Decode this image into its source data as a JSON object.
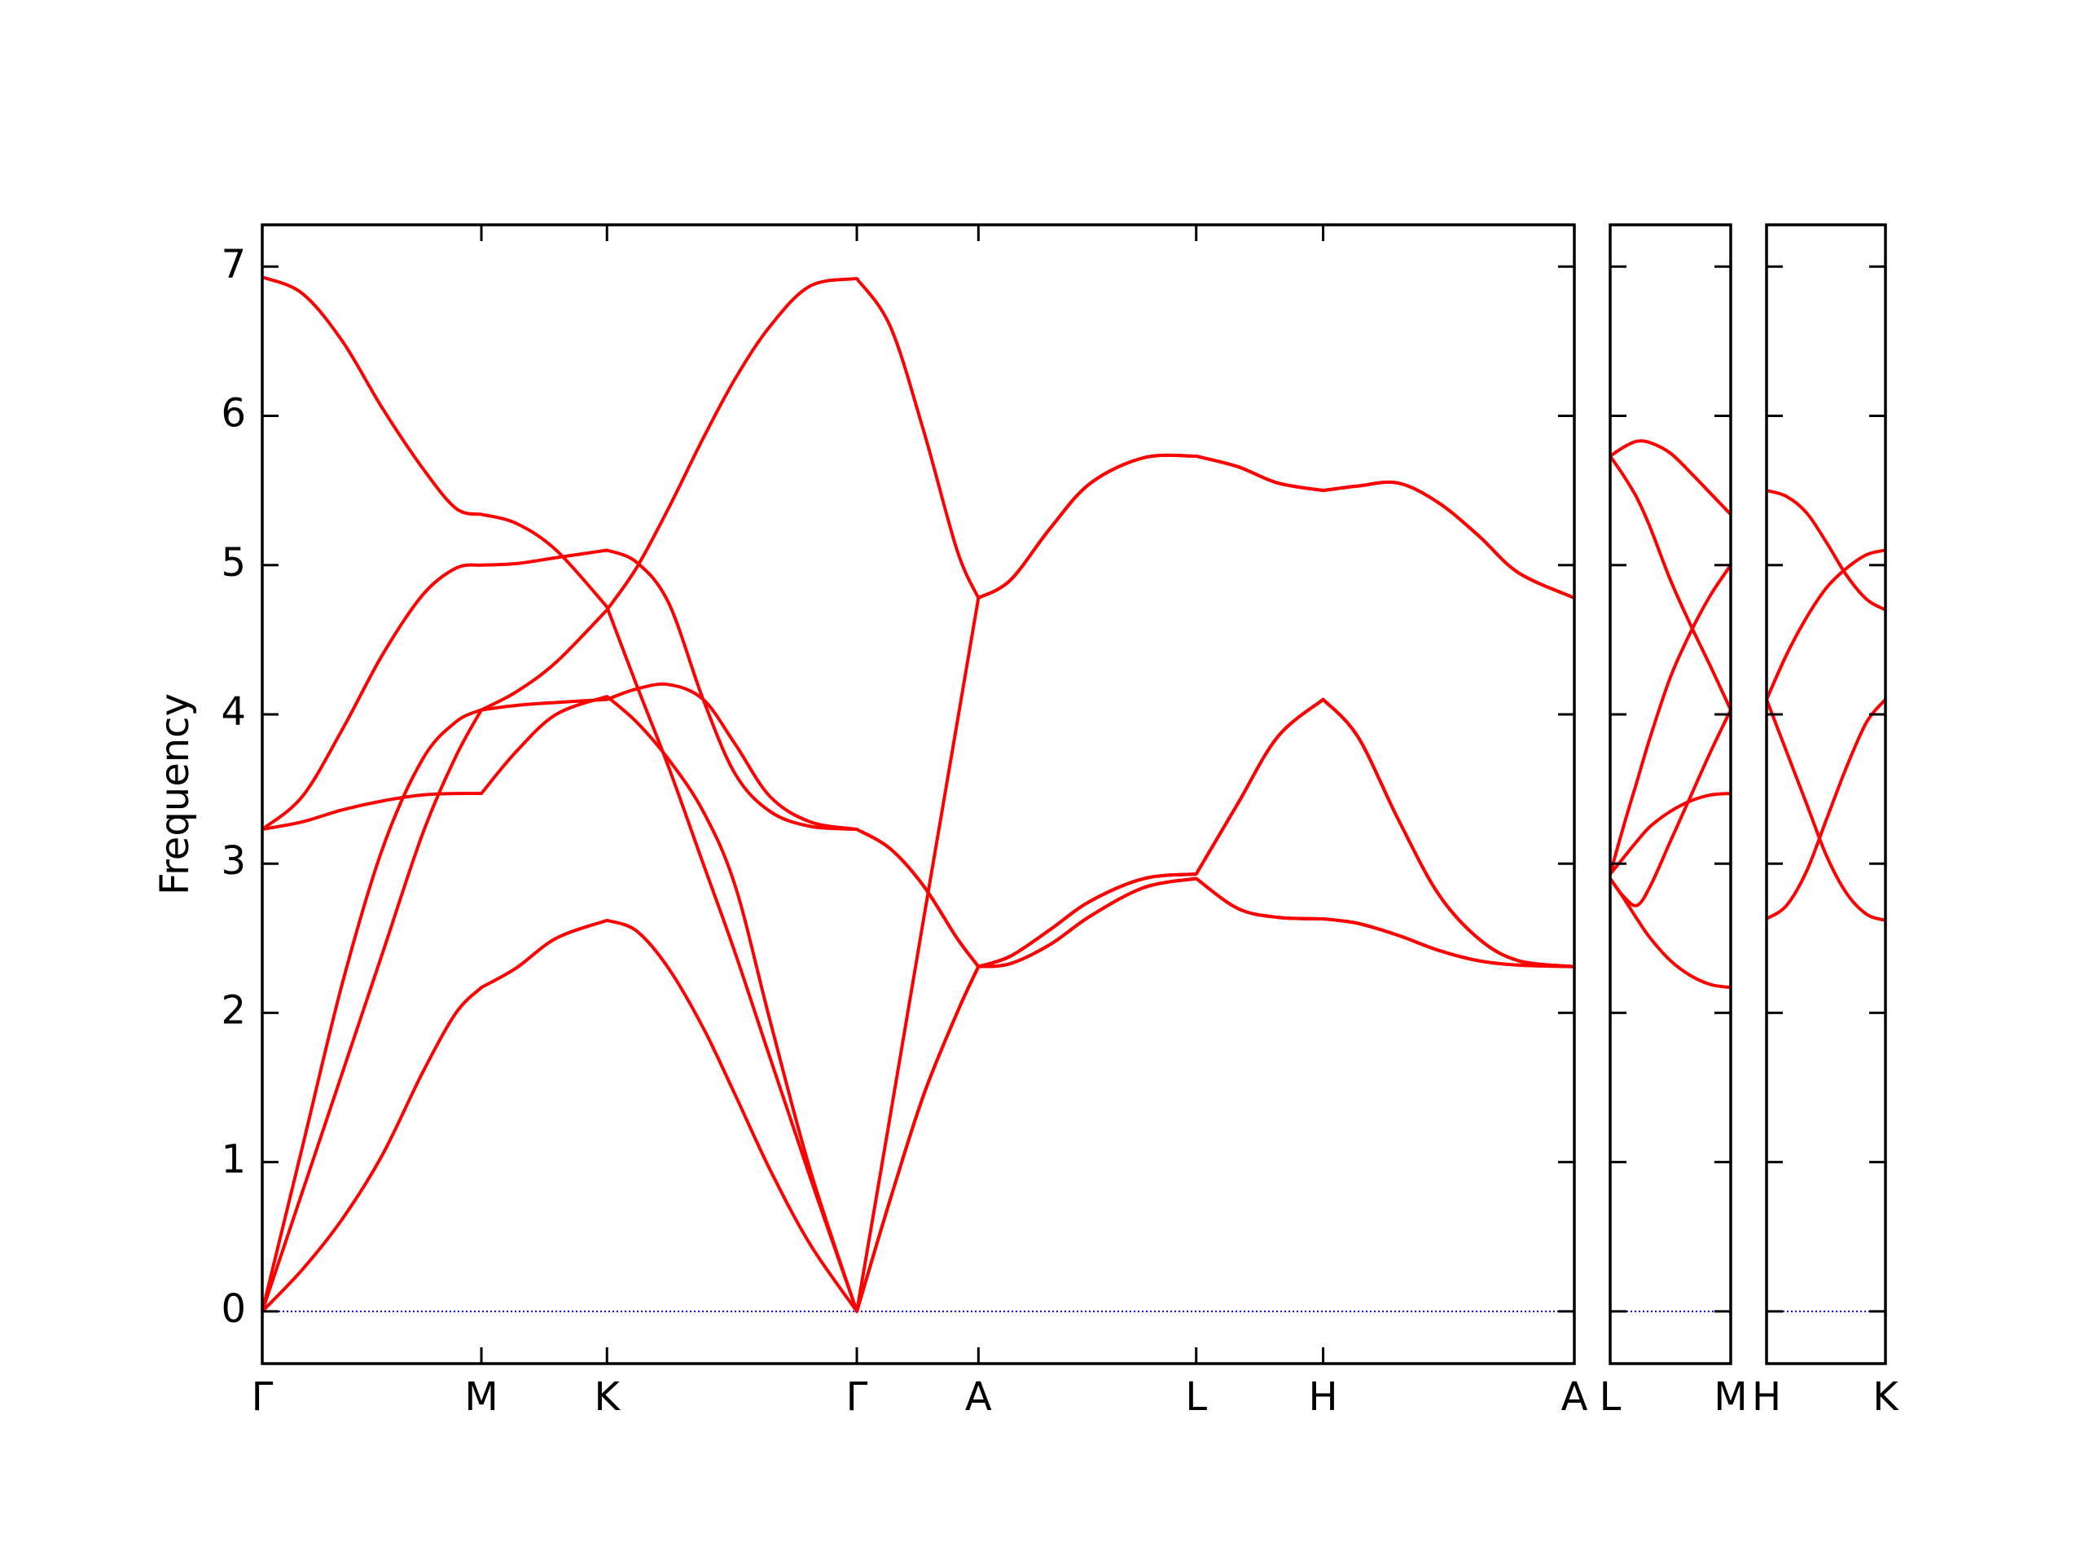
{
  "chart_data": [
    {
      "type": "line",
      "ylabel": "Frequency",
      "xlim": [
        0,
        9.82
      ],
      "ylim": [
        -0.35,
        7.28
      ],
      "yticks": [
        0,
        1,
        2,
        3,
        4,
        5,
        6,
        7
      ],
      "ytick_labels": true,
      "xticks": [
        {
          "value": 0,
          "label": "Γ"
        },
        {
          "value": 1.64,
          "label": "M"
        },
        {
          "value": 2.58,
          "label": "K"
        },
        {
          "value": 4.45,
          "label": "Γ"
        },
        {
          "value": 5.36,
          "label": "A"
        },
        {
          "value": 6.99,
          "label": "L"
        },
        {
          "value": 7.94,
          "label": "H"
        },
        {
          "value": 9.82,
          "label": "A"
        }
      ],
      "hline": 0,
      "hline_color": "#0000ff",
      "x": [
        0,
        0.3,
        0.6,
        0.9,
        1.2,
        1.45,
        1.64,
        1.9,
        2.2,
        2.58,
        2.8,
        3.04,
        3.3,
        3.54,
        3.8,
        4.1,
        4.45,
        4.7,
        4.95,
        5.2,
        5.36,
        5.6,
        5.9,
        6.2,
        6.6,
        6.99,
        7.3,
        7.6,
        7.94,
        8.2,
        8.5,
        8.8,
        9.1,
        9.4,
        9.82
      ],
      "series": [
        {
          "color": "#ff0000",
          "values": [
            0,
            0.28,
            0.62,
            1.05,
            1.6,
            2.0,
            2.17,
            2.3,
            2.5,
            2.62,
            2.55,
            2.3,
            1.9,
            1.45,
            0.95,
            0.45,
            0,
            0.75,
            1.45,
            2.0,
            2.31,
            2.33,
            2.46,
            2.65,
            2.84,
            2.9,
            2.7,
            2.64,
            2.63,
            2.6,
            2.52,
            2.42,
            2.35,
            2.32,
            2.31
          ]
        },
        {
          "color": "#ff0000",
          "values": [
            0,
            0.8,
            1.6,
            2.4,
            3.2,
            3.72,
            4.03,
            4.06,
            4.08,
            4.1,
            4.17,
            4.2,
            4.1,
            3.8,
            3.45,
            3.28,
            3.23,
            3.1,
            2.85,
            2.5,
            2.31,
            2.38,
            2.56,
            2.75,
            2.9,
            2.93,
            3.4,
            3.85,
            4.1,
            3.85,
            3.3,
            2.8,
            2.5,
            2.35,
            2.31
          ]
        },
        {
          "color": "#ff0000",
          "values": [
            0,
            1.1,
            2.2,
            3.1,
            3.7,
            3.95,
            4.03,
            4.15,
            4.35,
            4.7,
            4.98,
            5.38,
            5.85,
            6.25,
            6.6,
            6.87,
            6.92,
            6.6,
            5.9,
            5.1,
            4.78,
            4.9,
            5.25,
            5.55,
            5.72,
            5.73,
            5.66,
            5.55,
            5.5,
            5.53,
            5.55,
            5.42,
            5.2,
            4.95,
            4.78
          ]
        },
        {
          "color": "#ff0000",
          "values": [
            3.23,
            3.28,
            3.36,
            3.42,
            3.46,
            3.47,
            3.47,
            3.75,
            4.0,
            4.12,
            3.95,
            3.7,
            3.35,
            2.85,
            1.95,
            0.95,
            0,
            0.75,
            1.45,
            2.0,
            2.31,
            2.33,
            2.46,
            2.65,
            2.84,
            2.9,
            2.7,
            2.64,
            2.63,
            2.6,
            2.52,
            2.42,
            2.35,
            2.32,
            2.31
          ]
        },
        {
          "color": "#ff0000",
          "values": [
            3.23,
            3.45,
            3.9,
            4.4,
            4.8,
            4.98,
            5.0,
            5.01,
            5.05,
            5.1,
            5.02,
            4.75,
            4.1,
            3.6,
            3.35,
            3.25,
            3.23,
            3.1,
            2.85,
            2.5,
            2.31,
            2.38,
            2.56,
            2.75,
            2.9,
            2.93,
            3.4,
            3.85,
            4.1,
            3.85,
            3.3,
            2.8,
            2.5,
            2.35,
            2.31
          ]
        },
        {
          "color": "#ff0000",
          "values": [
            6.93,
            6.82,
            6.5,
            6.05,
            5.65,
            5.38,
            5.34,
            5.28,
            5.1,
            4.72,
            4.2,
            3.65,
            3.0,
            2.4,
            1.7,
            0.9,
            0,
            1.31,
            2.63,
            3.94,
            4.78,
            4.9,
            5.25,
            5.55,
            5.72,
            5.73,
            5.66,
            5.55,
            5.5,
            5.53,
            5.55,
            5.42,
            5.2,
            4.95,
            4.78
          ]
        }
      ]
    },
    {
      "type": "line",
      "xlim": [
        0,
        0.9
      ],
      "ylim": [
        -0.35,
        7.28
      ],
      "yticks": [
        0,
        1,
        2,
        3,
        4,
        5,
        6,
        7
      ],
      "ytick_labels": false,
      "xticks": [
        {
          "value": 0,
          "label": "L"
        },
        {
          "value": 0.9,
          "label": "M"
        }
      ],
      "hline": 0,
      "hline_color": "#0000ff",
      "x": [
        0,
        0.1,
        0.2,
        0.3,
        0.45,
        0.6,
        0.75,
        0.9
      ],
      "series": [
        {
          "color": "#ff0000",
          "values": [
            5.73,
            5.79,
            5.83,
            5.82,
            5.75,
            5.62,
            5.48,
            5.34
          ]
        },
        {
          "color": "#ff0000",
          "values": [
            5.73,
            5.6,
            5.45,
            5.25,
            4.9,
            4.6,
            4.32,
            4.03
          ]
        },
        {
          "color": "#ff0000",
          "values": [
            2.93,
            3.25,
            3.55,
            3.85,
            4.25,
            4.55,
            4.8,
            5.0
          ]
        },
        {
          "color": "#ff0000",
          "values": [
            2.9,
            2.78,
            2.72,
            2.85,
            3.15,
            3.45,
            3.75,
            4.03
          ]
        },
        {
          "color": "#ff0000",
          "values": [
            2.93,
            3.04,
            3.15,
            3.25,
            3.35,
            3.42,
            3.46,
            3.47
          ]
        },
        {
          "color": "#ff0000",
          "values": [
            2.9,
            2.77,
            2.63,
            2.5,
            2.35,
            2.25,
            2.19,
            2.17
          ]
        }
      ]
    },
    {
      "type": "line",
      "xlim": [
        0,
        0.89
      ],
      "ylim": [
        -0.35,
        7.28
      ],
      "yticks": [
        0,
        1,
        2,
        3,
        4,
        5,
        6,
        7
      ],
      "ytick_labels": false,
      "xticks": [
        {
          "value": 0,
          "label": "H"
        },
        {
          "value": 0.89,
          "label": "K"
        }
      ],
      "hline": 0,
      "hline_color": "#0000ff",
      "x": [
        0,
        0.15,
        0.3,
        0.45,
        0.6,
        0.75,
        0.89
      ],
      "series": [
        {
          "color": "#ff0000",
          "values": [
            5.5,
            5.46,
            5.35,
            5.15,
            4.93,
            4.77,
            4.7
          ]
        },
        {
          "color": "#ff0000",
          "values": [
            4.1,
            4.4,
            4.65,
            4.85,
            4.98,
            5.07,
            5.1
          ]
        },
        {
          "color": "#ff0000",
          "values": [
            4.1,
            3.75,
            3.4,
            3.05,
            2.8,
            2.66,
            2.62
          ]
        },
        {
          "color": "#ff0000",
          "values": [
            2.63,
            2.72,
            2.95,
            3.3,
            3.65,
            3.95,
            4.1
          ]
        }
      ]
    }
  ]
}
